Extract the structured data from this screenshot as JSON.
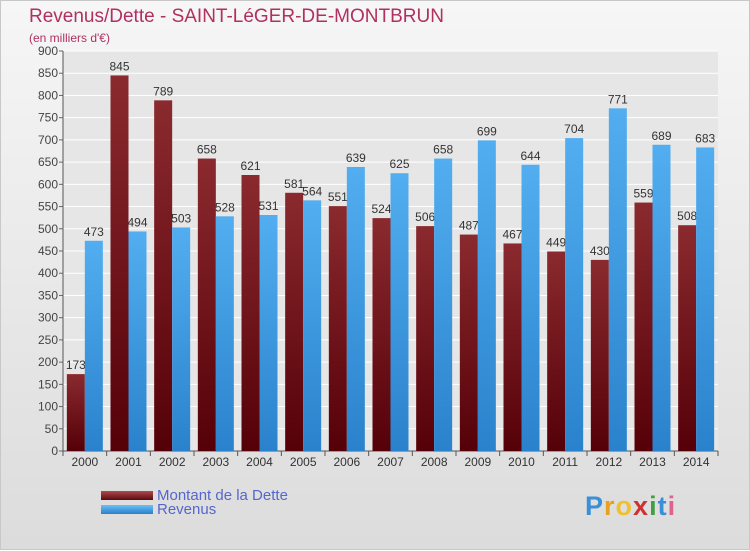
{
  "title": "Revenus/Dette - SAINT-LéGER-DE-MONTBRUN",
  "subtitle": "(en milliers d'€)",
  "chart_data": {
    "type": "bar",
    "categories": [
      "2000",
      "2001",
      "2002",
      "2003",
      "2004",
      "2005",
      "2006",
      "2007",
      "2008",
      "2009",
      "2010",
      "2011",
      "2012",
      "2013",
      "2014"
    ],
    "series": [
      {
        "name": "Montant de la Dette",
        "color": "#7a1a1e",
        "values": [
          173,
          845,
          789,
          658,
          621,
          581,
          551,
          524,
          506,
          487,
          467,
          449,
          430,
          559,
          508
        ]
      },
      {
        "name": "Revenus",
        "color": "#3d9be0",
        "values": [
          473,
          494,
          503,
          528,
          531,
          564,
          639,
          625,
          658,
          699,
          644,
          704,
          771,
          689,
          683
        ]
      }
    ],
    "ylim": [
      0,
      900
    ],
    "yticks": [
      0,
      50,
      100,
      150,
      200,
      250,
      300,
      350,
      400,
      450,
      500,
      550,
      600,
      650,
      700,
      750,
      800,
      850,
      900
    ],
    "grid": true,
    "legend_position": "bottom-left"
  },
  "legend": [
    {
      "label": "Montant de la Dette",
      "color": "#7a1a1e"
    },
    {
      "label": "Revenus",
      "color": "#3d9be0"
    }
  ],
  "brand": {
    "letters": [
      "P",
      "r",
      "o",
      "x",
      "i",
      "t",
      "i"
    ],
    "colors": [
      "#3a8fd8",
      "#e8a020",
      "#f0c030",
      "#d03030",
      "#40a040",
      "#3a8fd8",
      "#e06090"
    ]
  }
}
